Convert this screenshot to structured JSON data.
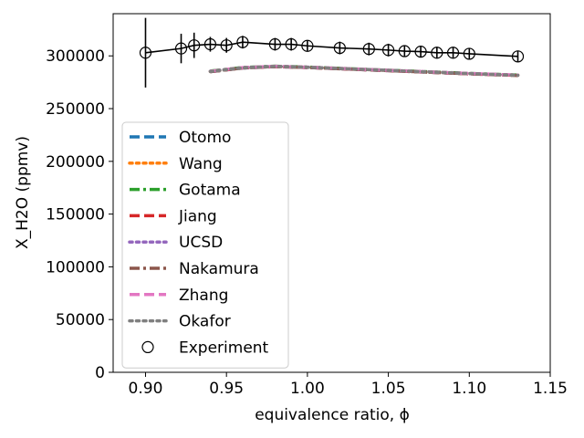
{
  "chart_data": {
    "type": "line",
    "title": "",
    "xlabel": "equivalence ratio, ϕ",
    "ylabel": "X_H2O (ppmv)",
    "xlim": [
      0.88,
      1.15
    ],
    "ylim": [
      0,
      340000
    ],
    "xticks": [
      0.9,
      0.95,
      1.0,
      1.05,
      1.1,
      1.15
    ],
    "xtick_labels": [
      "0.90",
      "0.95",
      "1.00",
      "1.05",
      "1.10",
      "1.15"
    ],
    "yticks": [
      0,
      50000,
      100000,
      150000,
      200000,
      250000,
      300000
    ],
    "ytick_labels": [
      "0",
      "50000",
      "100000",
      "150000",
      "200000",
      "250000",
      "300000"
    ],
    "grid": false,
    "legend_position": "center-left",
    "model_x": [
      0.94,
      0.96,
      0.98,
      1.0,
      1.02,
      1.04,
      1.06,
      1.08,
      1.1,
      1.13
    ],
    "series": [
      {
        "name": "Otomo",
        "color": "#1f77b4",
        "dash": "dashed",
        "values": [
          285000,
          288500,
          289800,
          289000,
          287800,
          286600,
          285400,
          284200,
          283000,
          281500
        ]
      },
      {
        "name": "Wang",
        "color": "#ff7f0e",
        "dash": "dotted",
        "values": [
          285200,
          288700,
          290000,
          289200,
          288000,
          286800,
          285600,
          284400,
          283200,
          281700
        ]
      },
      {
        "name": "Gotama",
        "color": "#2ca02c",
        "dash": "dashdot",
        "values": [
          285600,
          289000,
          290200,
          289400,
          288200,
          287000,
          285800,
          284600,
          283400,
          281800
        ]
      },
      {
        "name": "Jiang",
        "color": "#d62728",
        "dash": "dashed",
        "values": [
          285000,
          288600,
          289800,
          289000,
          287800,
          286600,
          285400,
          284200,
          283000,
          281500
        ]
      },
      {
        "name": "UCSD",
        "color": "#9467bd",
        "dash": "dotted",
        "values": [
          285300,
          288800,
          290100,
          289300,
          288100,
          286900,
          285700,
          284500,
          283300,
          281700
        ]
      },
      {
        "name": "Nakamura",
        "color": "#8c564b",
        "dash": "dashdot",
        "values": [
          285000,
          288500,
          289800,
          289000,
          287800,
          286600,
          285400,
          284200,
          283000,
          281400
        ]
      },
      {
        "name": "Zhang",
        "color": "#e377c2",
        "dash": "dashed",
        "values": [
          285400,
          288900,
          290100,
          289300,
          288100,
          286900,
          285700,
          284500,
          283300,
          281800
        ]
      },
      {
        "name": "Okafor",
        "color": "#7f7f7f",
        "dash": "dotted",
        "values": [
          285200,
          288700,
          290000,
          289200,
          288000,
          286800,
          285600,
          284400,
          283200,
          281600
        ]
      }
    ],
    "experiment": {
      "name": "Experiment",
      "x": [
        0.9,
        0.922,
        0.93,
        0.94,
        0.95,
        0.96,
        0.98,
        0.99,
        1.0,
        1.02,
        1.038,
        1.05,
        1.06,
        1.07,
        1.08,
        1.09,
        1.1,
        1.13
      ],
      "y": [
        303000,
        307000,
        310000,
        311000,
        310000,
        313000,
        311000,
        311000,
        309500,
        307500,
        306500,
        305500,
        304500,
        304000,
        303000,
        303000,
        302000,
        299500
      ],
      "yerr": [
        33000,
        14000,
        12000,
        7000,
        7000,
        6000,
        6000,
        6000,
        5000,
        6000,
        6000,
        6000,
        5500,
        5500,
        5500,
        5500,
        5500,
        5500
      ]
    }
  }
}
